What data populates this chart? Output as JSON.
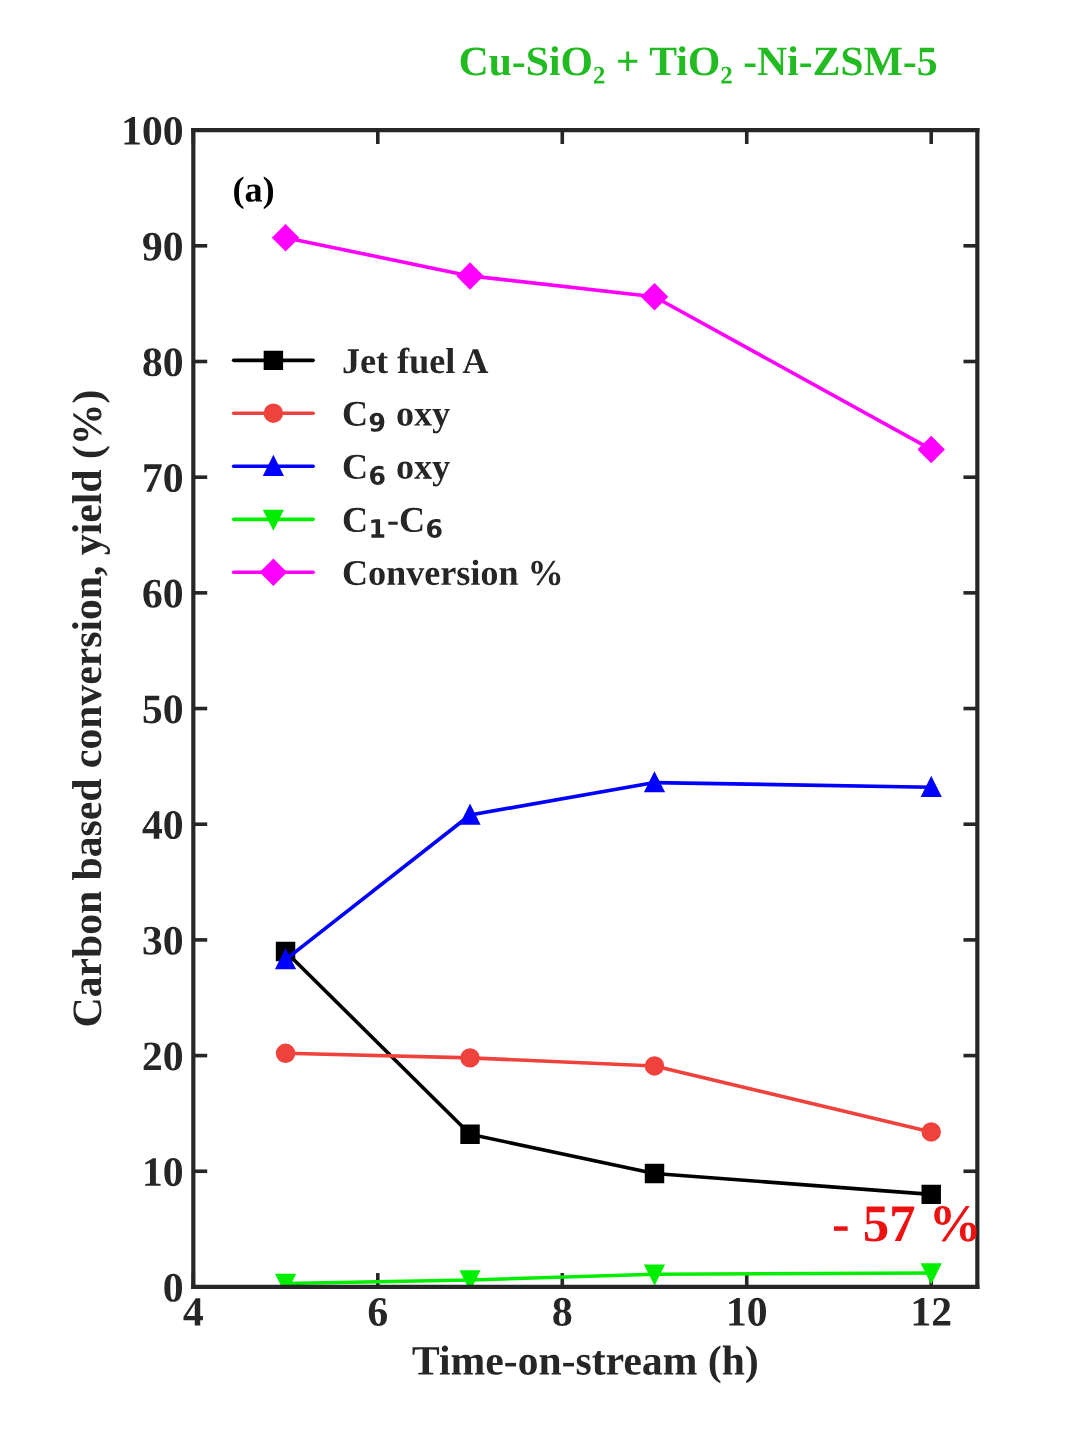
{
  "chart_data": {
    "type": "line",
    "title": "Cu-SiO₂ + TiO₂ -Ni-ZSM-5",
    "xlabel": "Time-on-stream (h)",
    "ylabel": "Carbon based conversion, yield (%)",
    "annotations": [
      "(a)",
      "- 57 %"
    ],
    "x": [
      5,
      7,
      9,
      12
    ],
    "series": [
      {
        "name": "Jet fuel A",
        "color": "#000000",
        "marker": "square",
        "values": [
          29.0,
          13.2,
          9.8,
          8.0
        ]
      },
      {
        "name": "C$_{9}$ oxy",
        "color": "#f0423c",
        "marker": "circle",
        "values": [
          20.2,
          19.8,
          19.1,
          13.4
        ]
      },
      {
        "name": "C$_{6}$ oxy",
        "color": "#0000ff",
        "marker": "triangle",
        "values": [
          28.3,
          40.8,
          43.6,
          43.2
        ]
      },
      {
        "name": "C$_{1}$-C$_{6}$",
        "color": "#00ee00",
        "marker": "triangle_down",
        "values": [
          0.3,
          0.6,
          1.1,
          1.2
        ]
      },
      {
        "name": "Conversion %",
        "color": "#ff00ff",
        "marker": "diamond",
        "values": [
          90.7,
          87.4,
          85.6,
          72.4
        ]
      }
    ],
    "xlim": [
      4,
      12.5
    ],
    "xticks": [
      4,
      6,
      8,
      10,
      12
    ],
    "ylim": [
      0,
      100
    ],
    "yticks": [
      0,
      10,
      20,
      30,
      40,
      50,
      60,
      70,
      80,
      90,
      100
    ],
    "grid": false,
    "legend": "top left",
    "line_style": "solid"
  }
}
